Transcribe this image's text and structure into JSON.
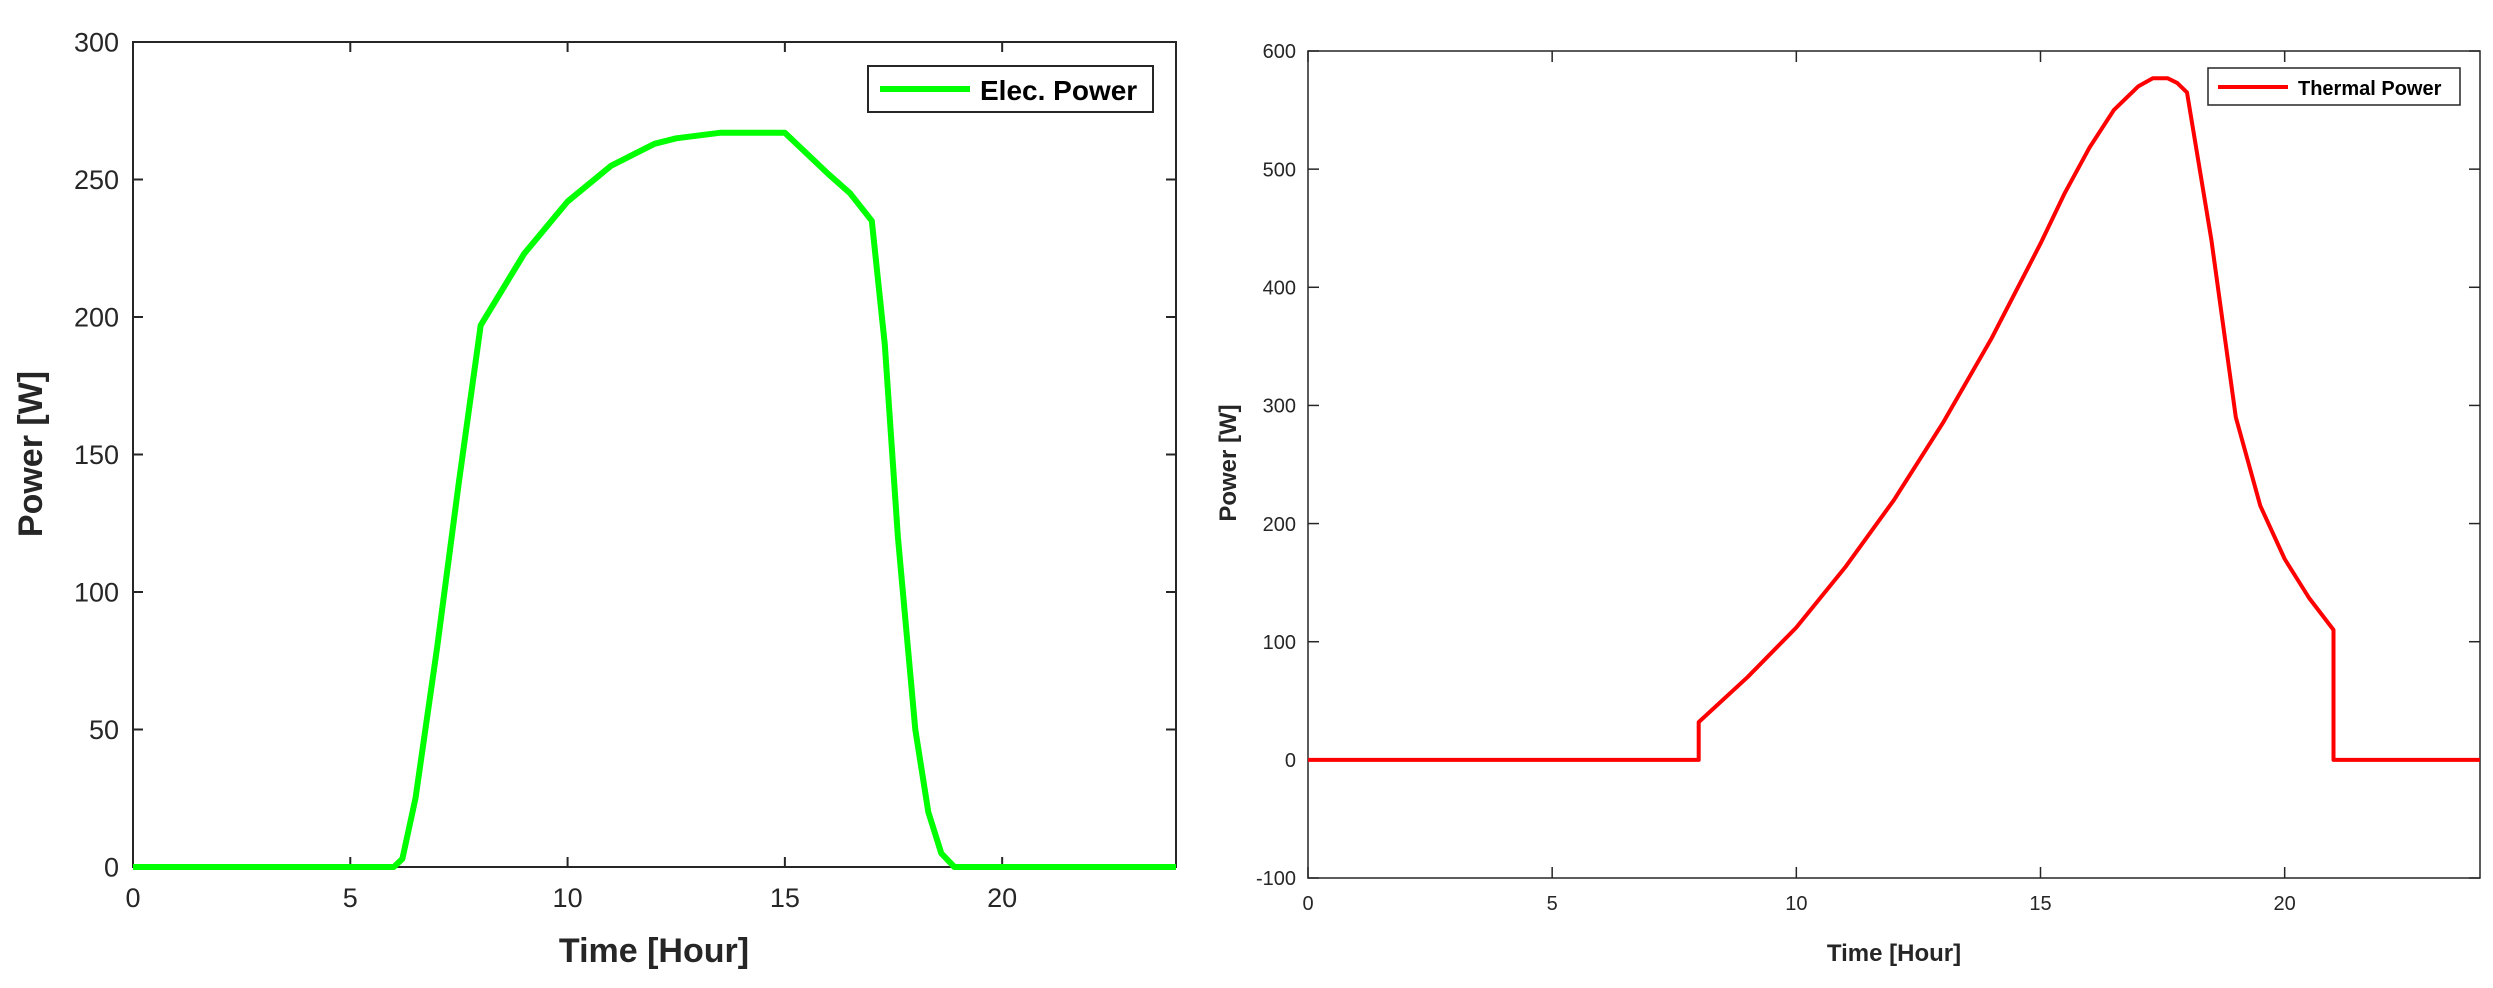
{
  "chart_data": [
    {
      "type": "line",
      "title": "",
      "xlabel": "Time [Hour]",
      "ylabel": "Power [W]",
      "xlim": [
        0,
        24
      ],
      "ylim": [
        0,
        300
      ],
      "xticks": [
        "0",
        "5",
        "10",
        "15",
        "20"
      ],
      "yticks": [
        "0",
        "50",
        "100",
        "150",
        "200",
        "250",
        "300"
      ],
      "grid": false,
      "legend_position": "top-right",
      "series": [
        {
          "name": "Elec. Power",
          "color": "#00ff00",
          "x": [
            0,
            6,
            6.2,
            6.5,
            7,
            7.5,
            8,
            9,
            10,
            11,
            12,
            12.5,
            13.5,
            14.5,
            15,
            16,
            16.5,
            17,
            17.3,
            17.6,
            18,
            18.3,
            18.6,
            18.9,
            19.2,
            24
          ],
          "y": [
            0,
            0,
            3,
            25,
            80,
            140,
            197,
            223,
            242,
            255,
            263,
            265,
            267,
            267,
            267,
            252,
            245,
            235,
            190,
            120,
            50,
            20,
            5,
            0,
            0,
            0
          ]
        }
      ]
    },
    {
      "type": "line",
      "title": "",
      "xlabel": "Time [Hour]",
      "ylabel": "Power [W]",
      "xlim": [
        0,
        24
      ],
      "ylim": [
        -100,
        600
      ],
      "xticks": [
        "0",
        "5",
        "10",
        "15",
        "20"
      ],
      "yticks": [
        "-100",
        "0",
        "100",
        "200",
        "300",
        "400",
        "500",
        "600"
      ],
      "grid": false,
      "legend_position": "top-right",
      "series": [
        {
          "name": "Thermal Power",
          "color": "#ff0000",
          "x": [
            0,
            8,
            8,
            9,
            10,
            11,
            12,
            13,
            14,
            15,
            15.5,
            16,
            16.5,
            17,
            17.3,
            17.6,
            17.8,
            18,
            18.5,
            19,
            19.5,
            20,
            20.5,
            21,
            21,
            24
          ],
          "y": [
            0,
            0,
            32,
            70,
            112,
            163,
            220,
            285,
            357,
            437,
            480,
            518,
            550,
            570,
            577,
            577,
            573,
            565,
            440,
            290,
            215,
            170,
            137,
            110,
            0,
            0
          ]
        }
      ]
    }
  ]
}
